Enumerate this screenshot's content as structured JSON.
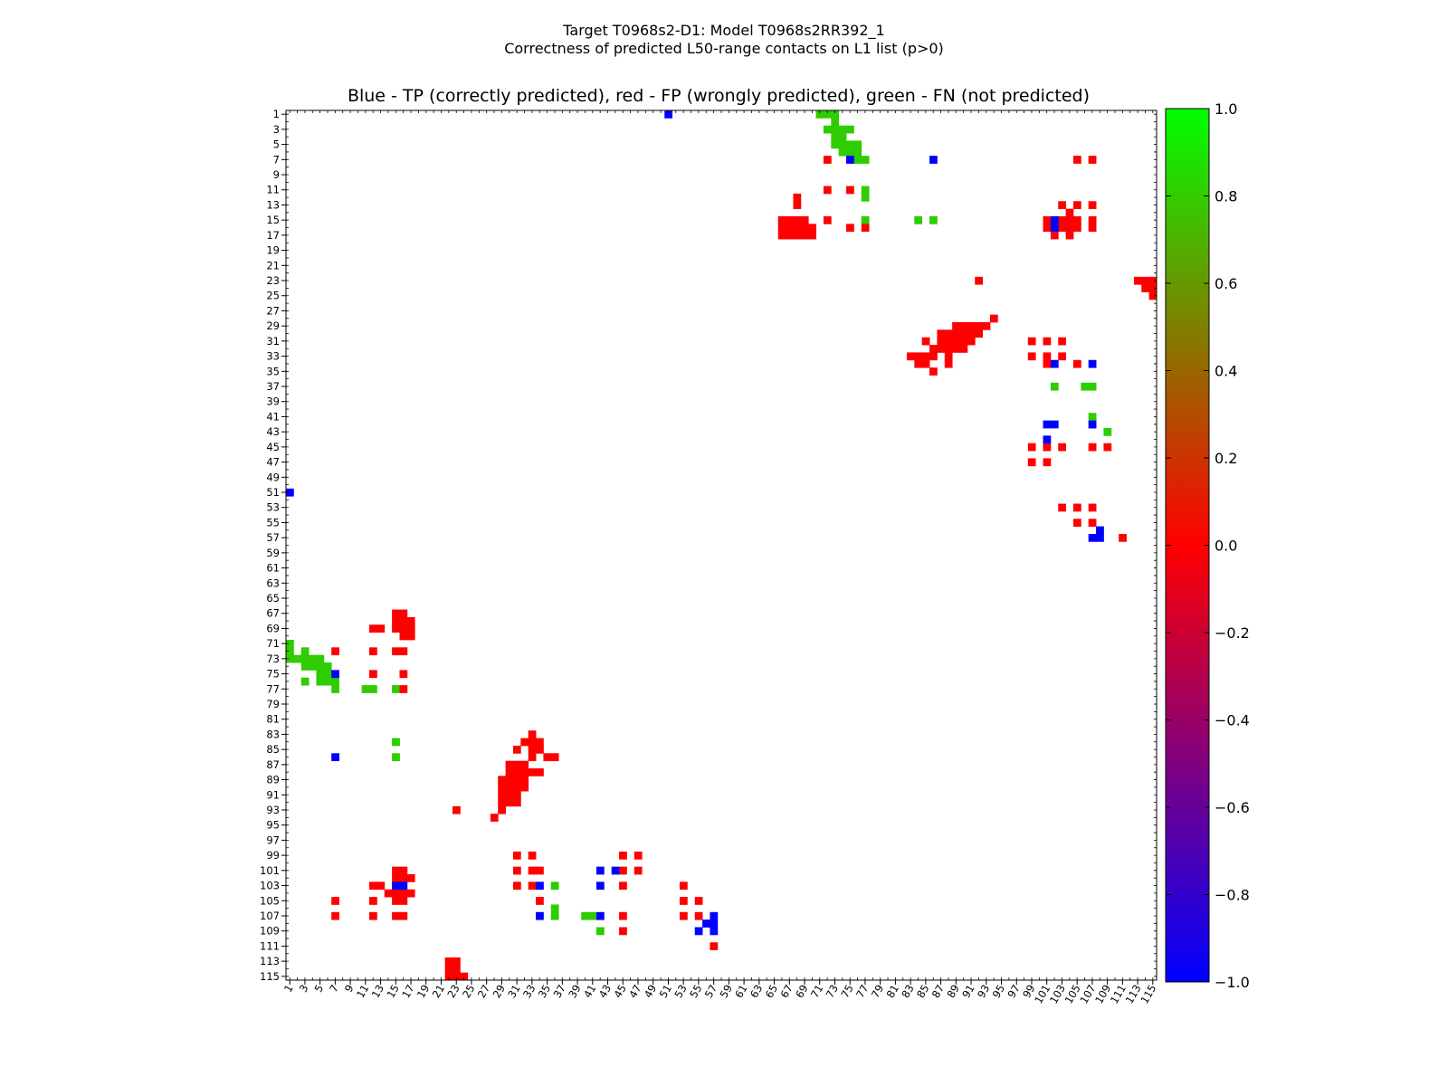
{
  "figure": {
    "title_line1": "Target T0968s2-D1: Model T0968s2RR392_1",
    "title_line2": "Correctness of predicted L50-range contacts on L1 list (p>0)"
  },
  "chart_data": {
    "type": "heatmap",
    "title": "Blue - TP (correctly predicted), red - FP (wrongly predicted), green - FN (not predicted)",
    "n_residues": 115,
    "xlabel": "",
    "ylabel": "",
    "x_tick_labels": [
      1,
      3,
      5,
      7,
      9,
      11,
      13,
      15,
      17,
      19,
      21,
      23,
      25,
      27,
      29,
      31,
      33,
      35,
      37,
      39,
      41,
      43,
      45,
      47,
      49,
      51,
      53,
      55,
      57,
      59,
      61,
      63,
      65,
      67,
      69,
      71,
      73,
      75,
      77,
      79,
      81,
      83,
      85,
      87,
      89,
      91,
      93,
      95,
      97,
      99,
      101,
      103,
      105,
      107,
      109,
      111,
      113,
      115
    ],
    "y_tick_labels": [
      1,
      3,
      5,
      7,
      9,
      11,
      13,
      15,
      17,
      19,
      21,
      23,
      25,
      27,
      29,
      31,
      33,
      35,
      37,
      39,
      41,
      43,
      45,
      47,
      49,
      51,
      53,
      55,
      57,
      59,
      61,
      63,
      65,
      67,
      69,
      71,
      73,
      75,
      77,
      79,
      81,
      83,
      85,
      87,
      89,
      91,
      93,
      95,
      97,
      99,
      101,
      103,
      105,
      107,
      109,
      111,
      113,
      115
    ],
    "colorbar": {
      "min": -1.0,
      "max": 1.0,
      "tick_labels": [
        "1.0",
        "0.8",
        "0.6",
        "0.4",
        "0.2",
        "0.0",
        "−0.2",
        "−0.4",
        "−0.6",
        "−0.8",
        "−1.0"
      ],
      "colors": [
        "#0000ff",
        "#ff0000",
        "#00ff00"
      ]
    },
    "legend": {
      "TP": "blue",
      "FP": "red",
      "FN": "green"
    },
    "cells": {
      "TP": [
        [
          1,
          51
        ],
        [
          7,
          75
        ],
        [
          7,
          86
        ],
        [
          15,
          102
        ],
        [
          16,
          102
        ],
        [
          34,
          102
        ],
        [
          34,
          107
        ],
        [
          42,
          101
        ],
        [
          42,
          102
        ],
        [
          42,
          107
        ],
        [
          44,
          101
        ],
        [
          51,
          1
        ],
        [
          56,
          108
        ],
        [
          57,
          107
        ],
        [
          57,
          108
        ],
        [
          75,
          7
        ],
        [
          86,
          7
        ],
        [
          101,
          42
        ],
        [
          101,
          44
        ],
        [
          103,
          15
        ],
        [
          103,
          16
        ],
        [
          103,
          34
        ],
        [
          103,
          42
        ],
        [
          107,
          34
        ],
        [
          107,
          42
        ],
        [
          107,
          57
        ],
        [
          108,
          56
        ],
        [
          108,
          57
        ],
        [
          109,
          55
        ],
        [
          109,
          57
        ]
      ],
      "FP": [
        [
          7,
          72
        ],
        [
          7,
          105
        ],
        [
          7,
          107
        ],
        [
          11,
          72
        ],
        [
          11,
          75
        ],
        [
          12,
          68
        ],
        [
          13,
          68
        ],
        [
          13,
          103
        ],
        [
          13,
          105
        ],
        [
          13,
          107
        ],
        [
          14,
          104
        ],
        [
          15,
          66
        ],
        [
          15,
          67
        ],
        [
          15,
          68
        ],
        [
          15,
          69
        ],
        [
          15,
          72
        ],
        [
          15,
          101
        ],
        [
          15,
          103
        ],
        [
          15,
          104
        ],
        [
          15,
          105
        ],
        [
          15,
          107
        ],
        [
          16,
          66
        ],
        [
          16,
          67
        ],
        [
          16,
          68
        ],
        [
          16,
          69
        ],
        [
          16,
          70
        ],
        [
          16,
          75
        ],
        [
          16,
          77
        ],
        [
          16,
          101
        ],
        [
          16,
          103
        ],
        [
          16,
          104
        ],
        [
          16,
          105
        ],
        [
          16,
          107
        ],
        [
          17,
          66
        ],
        [
          17,
          67
        ],
        [
          17,
          68
        ],
        [
          17,
          69
        ],
        [
          17,
          70
        ],
        [
          17,
          102
        ],
        [
          17,
          104
        ],
        [
          23,
          113
        ],
        [
          23,
          114
        ],
        [
          23,
          115
        ],
        [
          24,
          114
        ],
        [
          24,
          115
        ],
        [
          23,
          92
        ],
        [
          25,
          115
        ],
        [
          28,
          94
        ],
        [
          29,
          89
        ],
        [
          29,
          90
        ],
        [
          29,
          91
        ],
        [
          29,
          92
        ],
        [
          29,
          93
        ],
        [
          30,
          87
        ],
        [
          30,
          88
        ],
        [
          30,
          89
        ],
        [
          30,
          90
        ],
        [
          30,
          91
        ],
        [
          30,
          92
        ],
        [
          31,
          85
        ],
        [
          31,
          87
        ],
        [
          31,
          88
        ],
        [
          31,
          89
        ],
        [
          31,
          90
        ],
        [
          31,
          91
        ],
        [
          31,
          99
        ],
        [
          31,
          101
        ],
        [
          31,
          103
        ],
        [
          32,
          86
        ],
        [
          32,
          87
        ],
        [
          32,
          88
        ],
        [
          32,
          89
        ],
        [
          32,
          90
        ],
        [
          33,
          83
        ],
        [
          33,
          84
        ],
        [
          33,
          85
        ],
        [
          33,
          86
        ],
        [
          33,
          88
        ],
        [
          33,
          99
        ],
        [
          33,
          101
        ],
        [
          33,
          103
        ],
        [
          34,
          84
        ],
        [
          34,
          85
        ],
        [
          34,
          88
        ],
        [
          34,
          101
        ],
        [
          34,
          105
        ],
        [
          35,
          86
        ],
        [
          45,
          99
        ],
        [
          45,
          101
        ],
        [
          45,
          103
        ],
        [
          45,
          107
        ],
        [
          45,
          109
        ],
        [
          47,
          99
        ],
        [
          47,
          101
        ],
        [
          53,
          103
        ],
        [
          53,
          105
        ],
        [
          53,
          107
        ],
        [
          55,
          105
        ],
        [
          55,
          107
        ],
        [
          57,
          111
        ],
        [
          67,
          15
        ],
        [
          67,
          16
        ],
        [
          68,
          15
        ],
        [
          68,
          16
        ],
        [
          68,
          17
        ],
        [
          69,
          12
        ],
        [
          69,
          13
        ],
        [
          69,
          15
        ],
        [
          69,
          16
        ],
        [
          69,
          17
        ],
        [
          70,
          16
        ],
        [
          70,
          17
        ],
        [
          72,
          7
        ],
        [
          72,
          12
        ],
        [
          72,
          15
        ],
        [
          72,
          16
        ],
        [
          75,
          12
        ],
        [
          75,
          16
        ],
        [
          77,
          16
        ],
        [
          83,
          33
        ],
        [
          84,
          32
        ],
        [
          84,
          33
        ],
        [
          84,
          34
        ],
        [
          85,
          31
        ],
        [
          85,
          33
        ],
        [
          85,
          34
        ],
        [
          86,
          33
        ],
        [
          86,
          35
        ],
        [
          86,
          36
        ],
        [
          87,
          30
        ],
        [
          87,
          31
        ],
        [
          87,
          32
        ],
        [
          88,
          30
        ],
        [
          88,
          31
        ],
        [
          88,
          32
        ],
        [
          88,
          33
        ],
        [
          88,
          34
        ],
        [
          89,
          29
        ],
        [
          89,
          30
        ],
        [
          89,
          31
        ],
        [
          89,
          32
        ],
        [
          90,
          29
        ],
        [
          90,
          30
        ],
        [
          90,
          31
        ],
        [
          90,
          32
        ],
        [
          91,
          29
        ],
        [
          91,
          30
        ],
        [
          91,
          31
        ],
        [
          92,
          29
        ],
        [
          92,
          30
        ],
        [
          92,
          31
        ],
        [
          93,
          29
        ],
        [
          93,
          23
        ],
        [
          94,
          28
        ],
        [
          99,
          31
        ],
        [
          99,
          33
        ],
        [
          99,
          45
        ],
        [
          99,
          47
        ],
        [
          101,
          15
        ],
        [
          101,
          16
        ],
        [
          101,
          31
        ],
        [
          101,
          33
        ],
        [
          101,
          34
        ],
        [
          101,
          45
        ],
        [
          101,
          47
        ],
        [
          102,
          15
        ],
        [
          102,
          16
        ],
        [
          102,
          17
        ],
        [
          103,
          12
        ],
        [
          103,
          13
        ],
        [
          103,
          31
        ],
        [
          103,
          33
        ],
        [
          103,
          45
        ],
        [
          103,
          53
        ],
        [
          104,
          14
        ],
        [
          104,
          15
        ],
        [
          104,
          16
        ],
        [
          104,
          17
        ],
        [
          105,
          7
        ],
        [
          105,
          12
        ],
        [
          105,
          15
        ],
        [
          105,
          16
        ],
        [
          105,
          34
        ],
        [
          105,
          53
        ],
        [
          105,
          55
        ],
        [
          107,
          7
        ],
        [
          107,
          12
        ],
        [
          107,
          15
        ],
        [
          107,
          16
        ],
        [
          107,
          45
        ],
        [
          107,
          53
        ],
        [
          107,
          55
        ],
        [
          109,
          45
        ],
        [
          111,
          57
        ],
        [
          113,
          22
        ],
        [
          113,
          23
        ],
        [
          114,
          22
        ],
        [
          114,
          23
        ],
        [
          115,
          22
        ],
        [
          115,
          23
        ],
        [
          115,
          24
        ]
      ],
      "FN": [
        [
          1,
          71
        ],
        [
          1,
          72
        ],
        [
          1,
          73
        ],
        [
          2,
          73
        ],
        [
          3,
          72
        ],
        [
          3,
          73
        ],
        [
          3,
          74
        ],
        [
          3,
          75
        ],
        [
          4,
          73
        ],
        [
          4,
          74
        ],
        [
          5,
          73
        ],
        [
          5,
          74
        ],
        [
          5,
          75
        ],
        [
          5,
          76
        ],
        [
          6,
          74
        ],
        [
          6,
          75
        ],
        [
          6,
          76
        ],
        [
          7,
          76
        ],
        [
          7,
          77
        ],
        [
          11,
          77
        ],
        [
          12,
          77
        ],
        [
          15,
          77
        ],
        [
          15,
          84
        ],
        [
          15,
          86
        ],
        [
          37,
          102
        ],
        [
          37,
          106
        ],
        [
          37,
          107
        ],
        [
          41,
          107
        ],
        [
          42,
          107
        ],
        [
          43,
          109
        ],
        [
          71,
          1
        ],
        [
          72,
          1
        ],
        [
          72,
          3
        ],
        [
          73,
          1
        ],
        [
          73,
          2
        ],
        [
          73,
          3
        ],
        [
          73,
          4
        ],
        [
          73,
          5
        ],
        [
          74,
          3
        ],
        [
          74,
          4
        ],
        [
          74,
          5
        ],
        [
          74,
          6
        ],
        [
          75,
          5
        ],
        [
          75,
          6
        ],
        [
          76,
          3
        ],
        [
          76,
          5
        ],
        [
          76,
          6
        ],
        [
          76,
          7
        ],
        [
          77,
          7
        ],
        [
          77,
          11
        ],
        [
          77,
          12
        ],
        [
          77,
          15
        ],
        [
          84,
          15
        ],
        [
          86,
          15
        ],
        [
          103,
          36
        ],
        [
          106,
          36
        ],
        [
          107,
          36
        ],
        [
          107,
          40
        ],
        [
          107,
          41
        ],
        [
          109,
          42
        ]
      ]
    }
  }
}
